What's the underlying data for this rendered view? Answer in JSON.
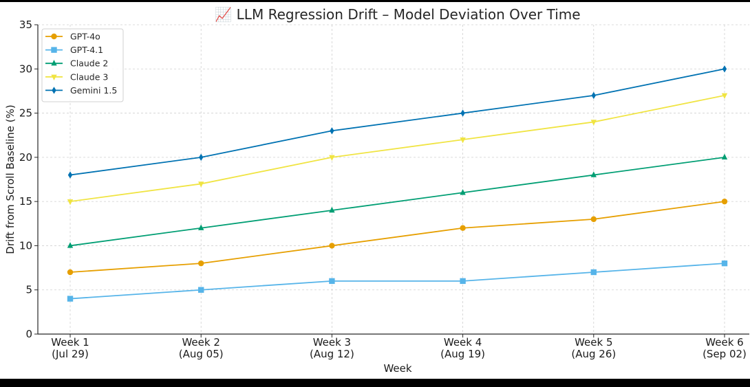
{
  "chart_data": {
    "type": "line",
    "title": "📈 LLM Regression Drift – Model Deviation Over Time",
    "xlabel": "Week",
    "ylabel": "Drift from Scroll Baseline (%)",
    "categories": [
      [
        "Week 1",
        "(Jul 29)"
      ],
      [
        "Week 2",
        "(Aug 05)"
      ],
      [
        "Week 3",
        "(Aug 12)"
      ],
      [
        "Week 4",
        "(Aug 19)"
      ],
      [
        "Week 5",
        "(Aug 26)"
      ],
      [
        "Week 6",
        "(Sep 02)"
      ]
    ],
    "ylim": [
      0,
      35
    ],
    "yticks": [
      0,
      5,
      10,
      15,
      20,
      25,
      30,
      35
    ],
    "grid": true,
    "legend_position": "top-left",
    "series": [
      {
        "name": "GPT-4o",
        "color": "#E69F00",
        "marker": "circle",
        "values": [
          7,
          8,
          10,
          12,
          13,
          15
        ]
      },
      {
        "name": "GPT-4.1",
        "color": "#56B4E9",
        "marker": "square",
        "values": [
          4,
          5,
          6,
          6,
          7,
          8
        ]
      },
      {
        "name": "Claude 2",
        "color": "#009E73",
        "marker": "triangle-up",
        "values": [
          10,
          12,
          14,
          16,
          18,
          20
        ]
      },
      {
        "name": "Claude 3",
        "color": "#F0E442",
        "marker": "triangle-down",
        "values": [
          15,
          17,
          20,
          22,
          24,
          27
        ]
      },
      {
        "name": "Gemini 1.5",
        "color": "#0072B2",
        "marker": "diamond",
        "values": [
          18,
          20,
          23,
          25,
          27,
          30
        ]
      }
    ]
  }
}
